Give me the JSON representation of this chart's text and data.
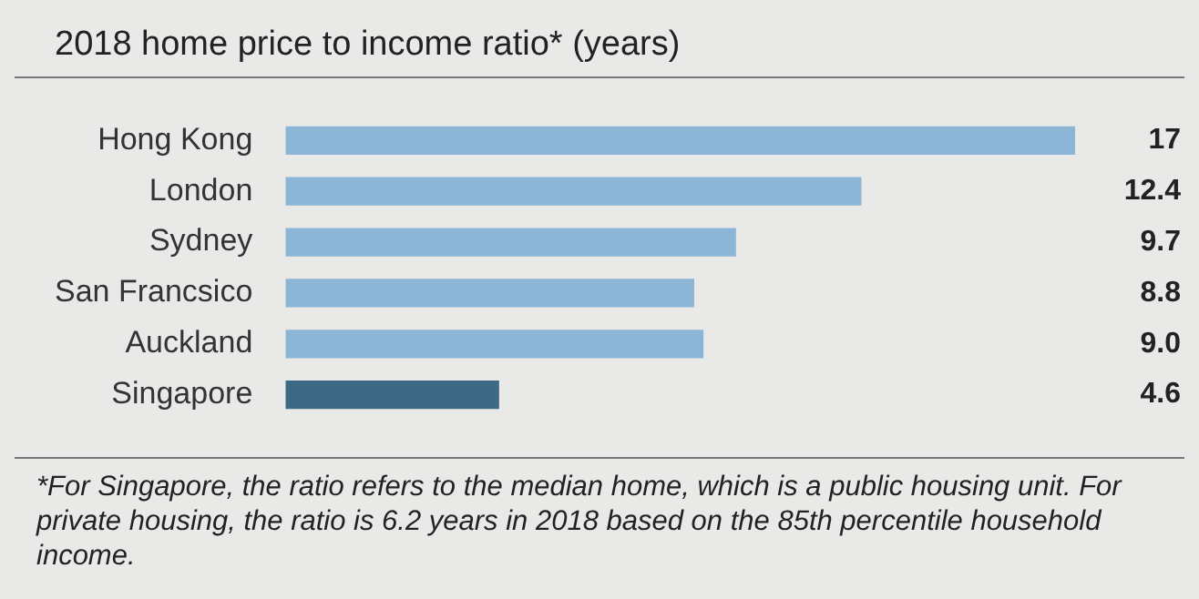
{
  "chart_data": {
    "type": "bar",
    "orientation": "horizontal",
    "title": "2018 home price to income ratio* (years)",
    "categories": [
      "Hong Kong",
      "London",
      "Sydney",
      "San Francsico",
      "Auckland",
      "Singapore"
    ],
    "values": [
      17,
      12.4,
      9.7,
      8.8,
      9.0,
      4.6
    ],
    "value_labels": [
      "17",
      "12.4",
      "9.7",
      "8.8",
      "9.0",
      "4.6"
    ],
    "colors": [
      "#8db6d6",
      "#8db6d6",
      "#8db6d6",
      "#8db6d6",
      "#8db6d6",
      "#3d6985"
    ],
    "grid": false,
    "legend": false,
    "annotations": [
      "*For Singapore, the ratio refers to the median home, which is a public housing unit. For private housing, the ratio is 6.2 years in 2018 based on the 85th percentile household income."
    ]
  }
}
